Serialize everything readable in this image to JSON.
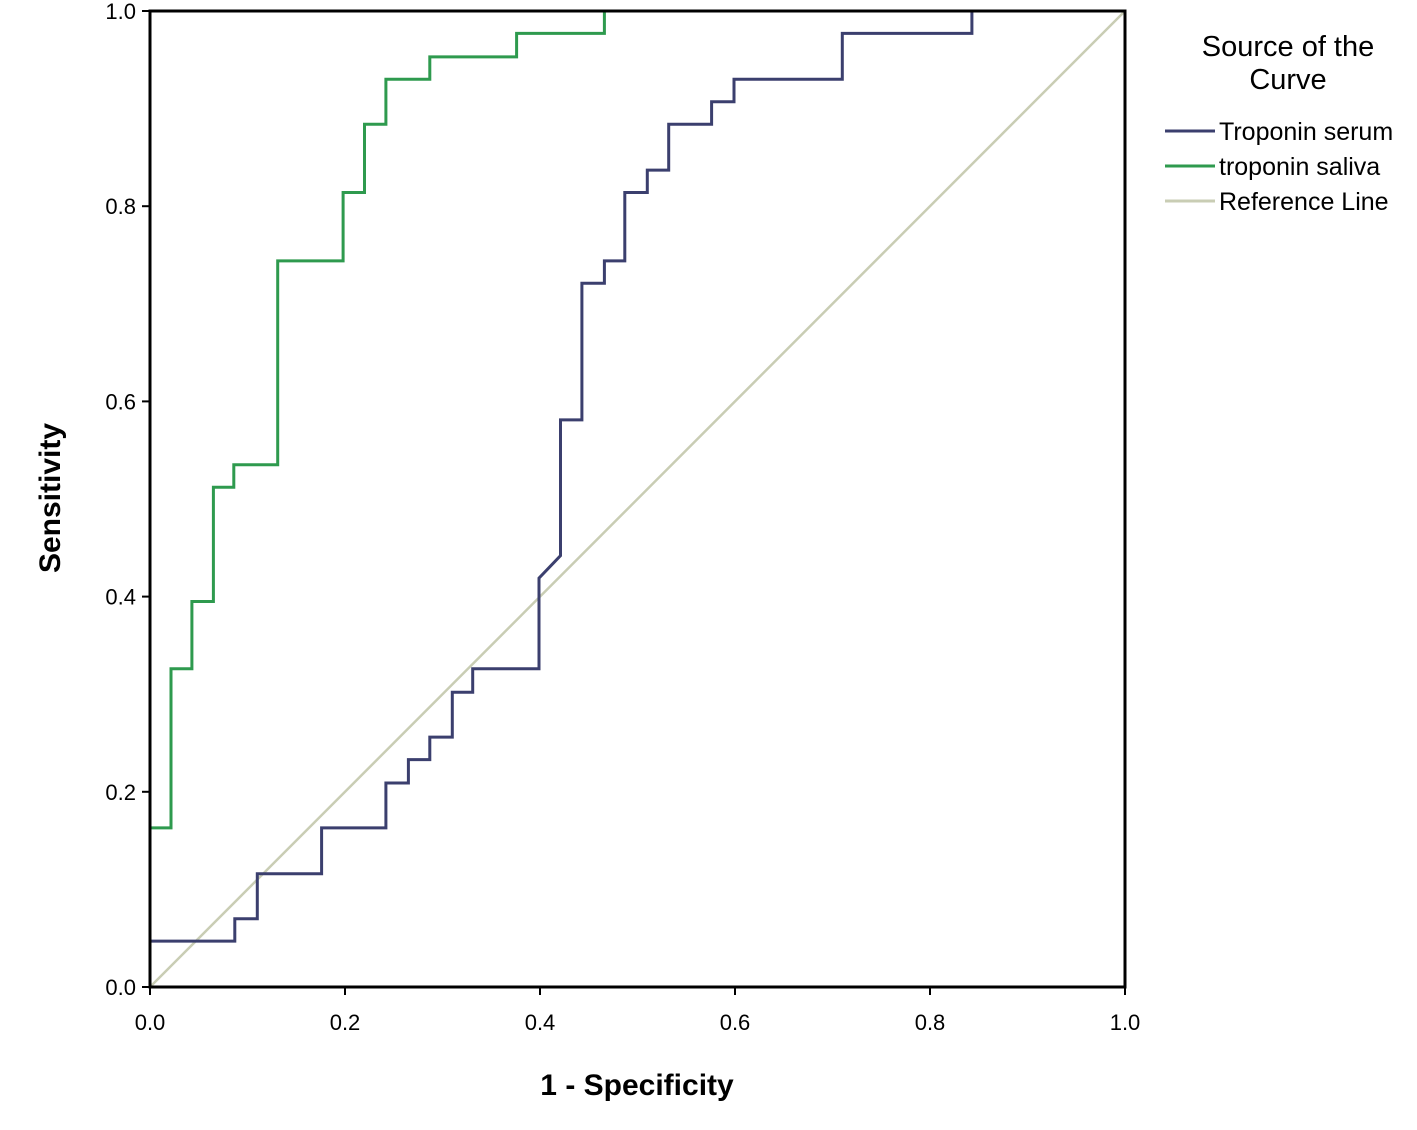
{
  "chart_data": {
    "type": "line",
    "title": "",
    "xlabel": "1 - Specificity",
    "ylabel": "Sensitivity",
    "xlim": [
      0,
      1
    ],
    "ylim": [
      0,
      1
    ],
    "xticks": [
      "0.0",
      "0.2",
      "0.4",
      "0.6",
      "0.8",
      "1.0"
    ],
    "yticks": [
      "0.0",
      "0.2",
      "0.4",
      "0.6",
      "0.8",
      "1.0"
    ],
    "grid": false,
    "legend": {
      "title": "Source of the Curve",
      "title_lines": [
        "Source of the",
        "Curve"
      ],
      "placement": "right"
    },
    "series": [
      {
        "name": "Troponin serum",
        "color": "#3b3f6e",
        "points": [
          [
            0,
            0
          ],
          [
            0,
            0.047
          ],
          [
            0.087,
            0.047
          ],
          [
            0.087,
            0.07
          ],
          [
            0.11,
            0.07
          ],
          [
            0.11,
            0.116
          ],
          [
            0.176,
            0.116
          ],
          [
            0.176,
            0.163
          ],
          [
            0.242,
            0.163
          ],
          [
            0.242,
            0.209
          ],
          [
            0.265,
            0.209
          ],
          [
            0.265,
            0.233
          ],
          [
            0.287,
            0.233
          ],
          [
            0.287,
            0.256
          ],
          [
            0.31,
            0.256
          ],
          [
            0.31,
            0.302
          ],
          [
            0.331,
            0.302
          ],
          [
            0.331,
            0.326
          ],
          [
            0.399,
            0.326
          ],
          [
            0.399,
            0.419
          ],
          [
            0.421,
            0.442
          ],
          [
            0.421,
            0.581
          ],
          [
            0.443,
            0.581
          ],
          [
            0.443,
            0.721
          ],
          [
            0.466,
            0.721
          ],
          [
            0.466,
            0.744
          ],
          [
            0.487,
            0.744
          ],
          [
            0.487,
            0.814
          ],
          [
            0.51,
            0.814
          ],
          [
            0.51,
            0.837
          ],
          [
            0.532,
            0.837
          ],
          [
            0.532,
            0.884
          ],
          [
            0.576,
            0.884
          ],
          [
            0.576,
            0.907
          ],
          [
            0.599,
            0.907
          ],
          [
            0.599,
            0.93
          ],
          [
            0.71,
            0.93
          ],
          [
            0.71,
            0.977
          ],
          [
            0.843,
            0.977
          ],
          [
            0.843,
            1.0
          ],
          [
            1.0,
            1.0
          ]
        ]
      },
      {
        "name": "troponin saliva",
        "color": "#2e9a4e",
        "points": [
          [
            0,
            0
          ],
          [
            0,
            0.163
          ],
          [
            0.0215,
            0.163
          ],
          [
            0.0215,
            0.326
          ],
          [
            0.043,
            0.326
          ],
          [
            0.043,
            0.395
          ],
          [
            0.065,
            0.395
          ],
          [
            0.065,
            0.512
          ],
          [
            0.086,
            0.512
          ],
          [
            0.086,
            0.535
          ],
          [
            0.131,
            0.535
          ],
          [
            0.131,
            0.744
          ],
          [
            0.198,
            0.744
          ],
          [
            0.198,
            0.814
          ],
          [
            0.22,
            0.814
          ],
          [
            0.22,
            0.884
          ],
          [
            0.242,
            0.884
          ],
          [
            0.242,
            0.93
          ],
          [
            0.287,
            0.93
          ],
          [
            0.287,
            0.953
          ],
          [
            0.376,
            0.953
          ],
          [
            0.376,
            0.977
          ],
          [
            0.466,
            0.977
          ],
          [
            0.466,
            1.0
          ],
          [
            1.0,
            1.0
          ]
        ]
      },
      {
        "name": "Reference Line",
        "color": "#c9cdb4",
        "points": [
          [
            0,
            0
          ],
          [
            1,
            1
          ]
        ]
      }
    ]
  }
}
